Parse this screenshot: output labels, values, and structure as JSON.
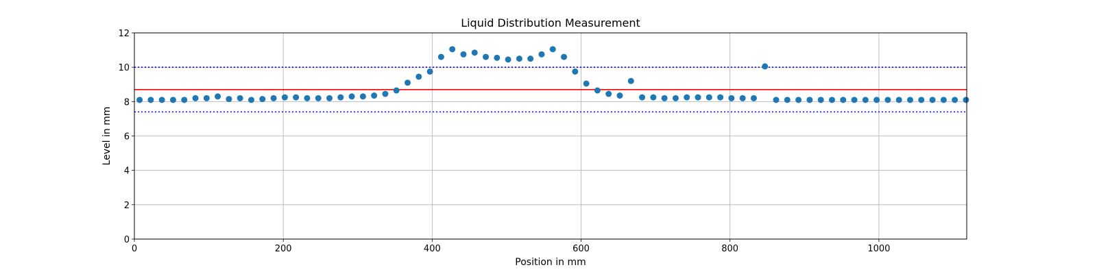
{
  "chart_data": {
    "type": "scatter",
    "title": "Liquid Distribution Measurement",
    "xlabel": "Position in mm",
    "ylabel": "Level in mm",
    "xlim": [
      0,
      1118
    ],
    "ylim": [
      0,
      12
    ],
    "xticks": [
      0,
      200,
      400,
      600,
      800,
      1000
    ],
    "yticks": [
      0,
      2,
      4,
      6,
      8,
      10,
      12
    ],
    "grid": true,
    "series": [
      {
        "color": "#1f77b4",
        "x": [
          7,
          22,
          37,
          52,
          67,
          82,
          97,
          112,
          127,
          142,
          157,
          172,
          187,
          202,
          217,
          232,
          247,
          262,
          277,
          292,
          307,
          322,
          337,
          352,
          367,
          382,
          397,
          412,
          427,
          442,
          457,
          472,
          487,
          502,
          517,
          532,
          547,
          562,
          577,
          592,
          607,
          622,
          637,
          652,
          667,
          682,
          697,
          712,
          727,
          742,
          757,
          772,
          787,
          802,
          817,
          832,
          847,
          862,
          877,
          892,
          907,
          922,
          937,
          952,
          967,
          982,
          997,
          1012,
          1027,
          1042,
          1057,
          1072,
          1087,
          1102,
          1117
        ],
        "y": [
          8.1,
          8.1,
          8.1,
          8.1,
          8.1,
          8.2,
          8.2,
          8.3,
          8.15,
          8.2,
          8.1,
          8.15,
          8.2,
          8.25,
          8.25,
          8.2,
          8.2,
          8.2,
          8.25,
          8.3,
          8.3,
          8.35,
          8.45,
          8.65,
          9.1,
          9.45,
          9.75,
          10.6,
          11.05,
          10.75,
          10.85,
          10.6,
          10.55,
          10.45,
          10.5,
          10.5,
          10.75,
          11.05,
          10.6,
          9.75,
          9.05,
          8.65,
          8.45,
          8.35,
          9.2,
          8.25,
          8.25,
          8.2,
          8.2,
          8.25,
          8.25,
          8.25,
          8.25,
          8.2,
          8.2,
          8.2,
          10.05,
          8.1,
          8.1,
          8.1,
          8.1,
          8.1,
          8.1,
          8.1,
          8.1,
          8.1,
          8.1,
          8.1,
          8.1,
          8.1,
          8.1,
          8.1,
          8.1,
          8.1,
          8.1
        ]
      }
    ],
    "reference_lines": [
      {
        "y": 8.7,
        "color": "#ff0000",
        "style": "solid"
      },
      {
        "y": 10.0,
        "color": "#0000ff",
        "style": "dotted"
      },
      {
        "y": 7.4,
        "color": "#0000ff",
        "style": "dotted"
      }
    ]
  }
}
